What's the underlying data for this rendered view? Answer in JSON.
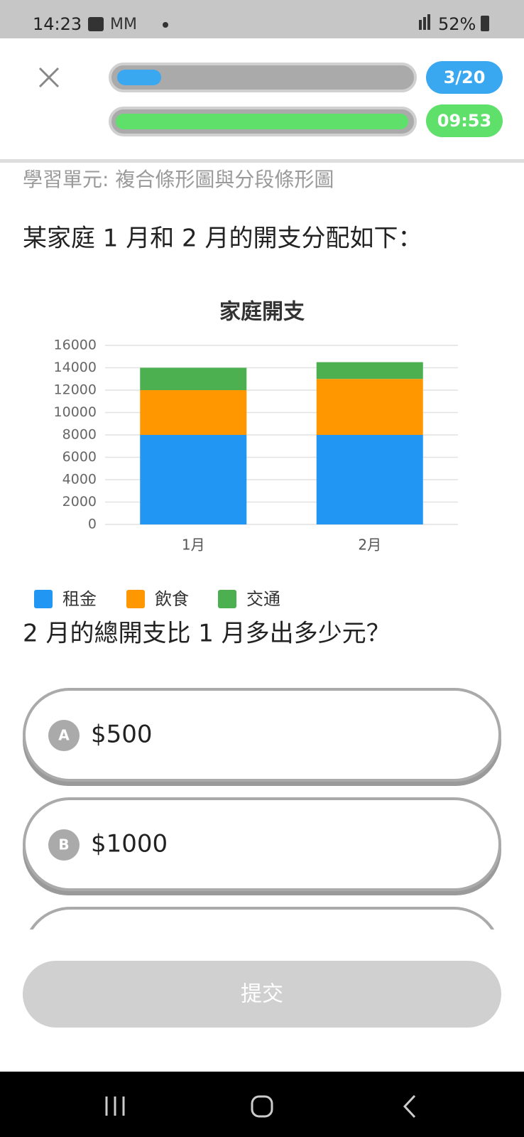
{
  "status_bar": {
    "time": "14:23",
    "battery": "52%"
  },
  "header": {
    "progress": "3/20",
    "timer": "09:53"
  },
  "unit": "學習單元: 複合條形圖與分段條形圖",
  "question_intro": "某家庭 1 月和 2 月的開支分配如下：",
  "chart_data": {
    "type": "stacked_bar",
    "title": "家庭開支",
    "categories": [
      "1月",
      "2月"
    ],
    "series": [
      {
        "name": "租金",
        "color": "#2196f3",
        "values": [
          8000,
          8000
        ]
      },
      {
        "name": "飲食",
        "color": "#ff9800",
        "values": [
          4000,
          5000
        ]
      },
      {
        "name": "交通",
        "color": "#4caf50",
        "values": [
          2000,
          1500
        ]
      }
    ],
    "ylim": [
      0,
      16000
    ],
    "yticks": [
      0,
      2000,
      4000,
      6000,
      8000,
      10000,
      12000,
      14000,
      16000
    ],
    "grid": true,
    "legend": "bottom-left"
  },
  "question": "2 月的總開支比 1 月多出多少元？",
  "options": [
    {
      "letter": "A",
      "text": "$500"
    },
    {
      "letter": "B",
      "text": "$1000"
    }
  ],
  "submit": "提交"
}
